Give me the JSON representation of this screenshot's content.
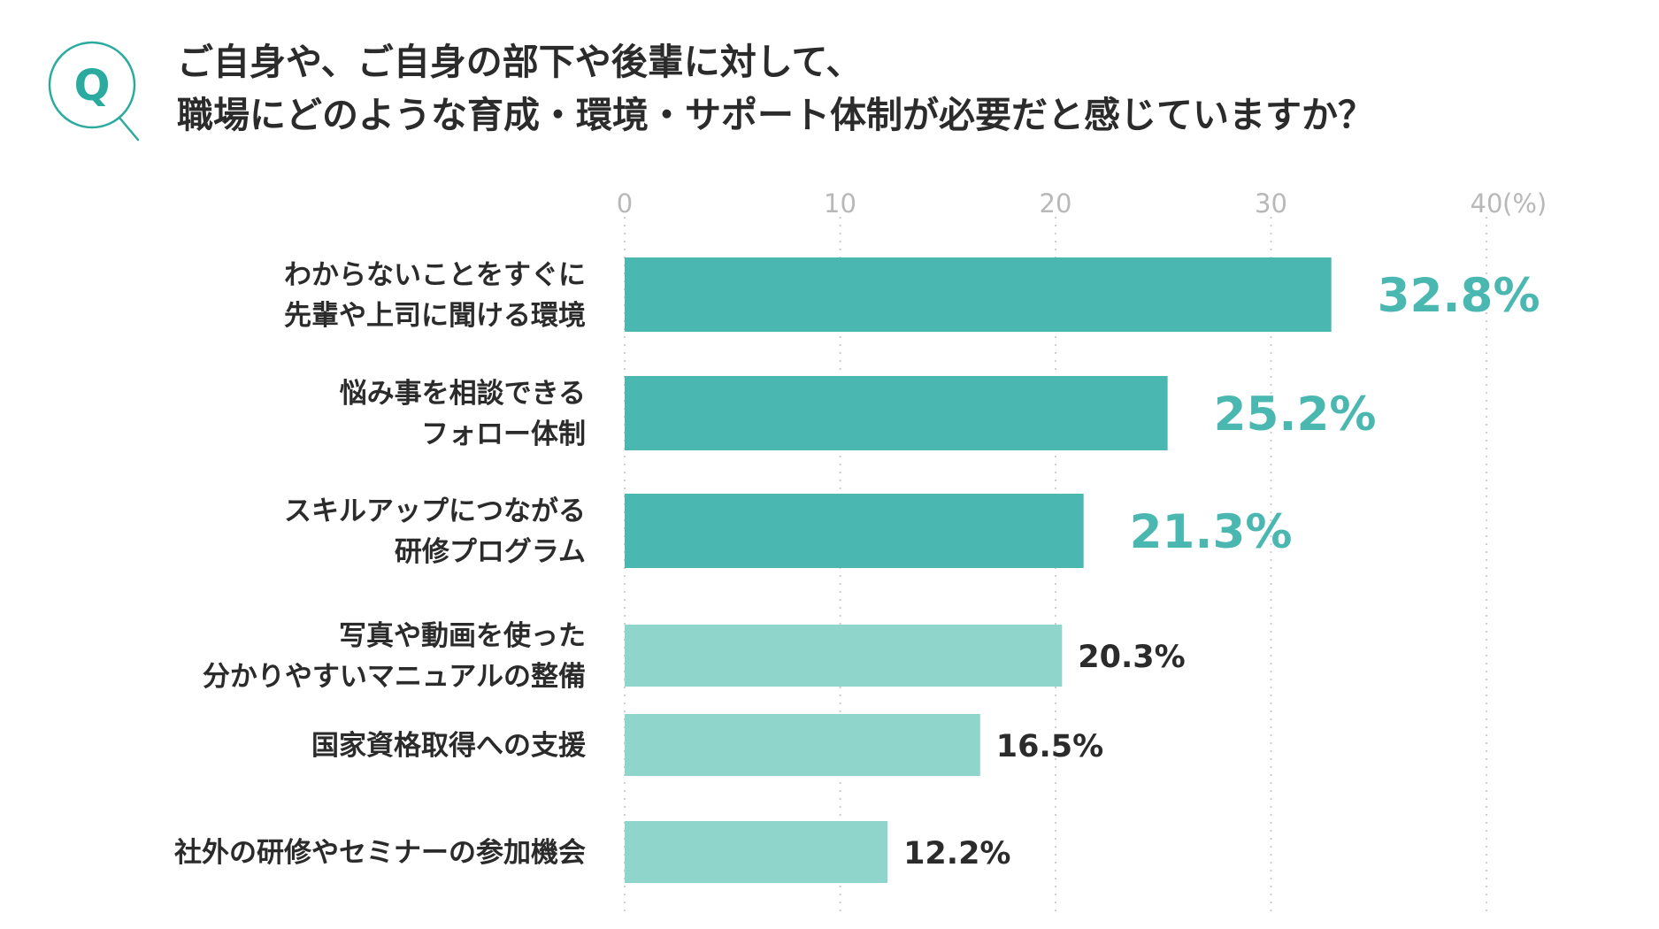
{
  "question": {
    "badge": "Q",
    "lines": [
      "ご自身や、ご自身の部下や後輩に対して、",
      "職場にどのような育成・環境・サポート体制が必要だと感じていますか？"
    ]
  },
  "colors": {
    "accent": "#2bab9f",
    "bar_dark": "#4ab8b1",
    "bar_light": "#8fd5cb",
    "value_dark": "#4ab8b1",
    "value_light": "#2b2b2b",
    "tick": "#b8b8b8",
    "grid": "#cfcfcf"
  },
  "chart_data": {
    "type": "bar",
    "orientation": "horizontal",
    "xlim": [
      0,
      40
    ],
    "ticks": [
      {
        "value": 0,
        "label": "0"
      },
      {
        "value": 10,
        "label": "10"
      },
      {
        "value": 20,
        "label": "20"
      },
      {
        "value": 30,
        "label": "30"
      },
      {
        "value": 40,
        "label": "40"
      }
    ],
    "unit_label": "(%)",
    "grid": "dotted vertical",
    "categories": [
      {
        "lines": [
          "わからないことをすぐに",
          "先輩や上司に聞ける環境"
        ],
        "value": 32.8,
        "value_label": "32.8%",
        "highlight": true
      },
      {
        "lines": [
          "悩み事を相談できる",
          "フォロー体制"
        ],
        "value": 25.2,
        "value_label": "25.2%",
        "highlight": true
      },
      {
        "lines": [
          "スキルアップにつながる",
          "研修プログラム"
        ],
        "value": 21.3,
        "value_label": "21.3%",
        "highlight": true
      },
      {
        "lines": [
          "写真や動画を使った",
          "分かりやすいマニュアルの整備"
        ],
        "value": 20.3,
        "value_label": "20.3%",
        "highlight": false
      },
      {
        "lines": [
          "国家資格取得への支援"
        ],
        "value": 16.5,
        "value_label": "16.5%",
        "highlight": false
      },
      {
        "lines": [
          "社外の研修やセミナーの参加機会"
        ],
        "value": 12.2,
        "value_label": "12.2%",
        "highlight": false
      }
    ]
  }
}
